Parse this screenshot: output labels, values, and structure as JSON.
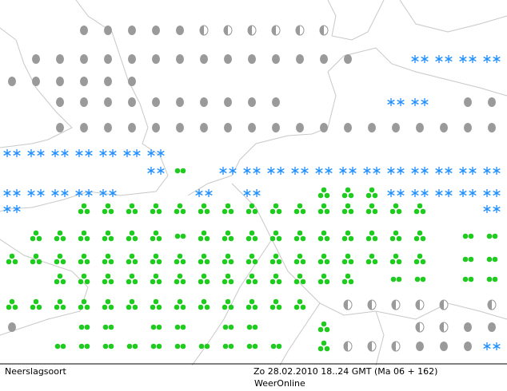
{
  "footer": {
    "left": "Neerslagsoort",
    "datetime": "Zo 28.02.2010 18..24 GMT (Ma 06 + 162)",
    "source": "WeerOnline"
  }
}
